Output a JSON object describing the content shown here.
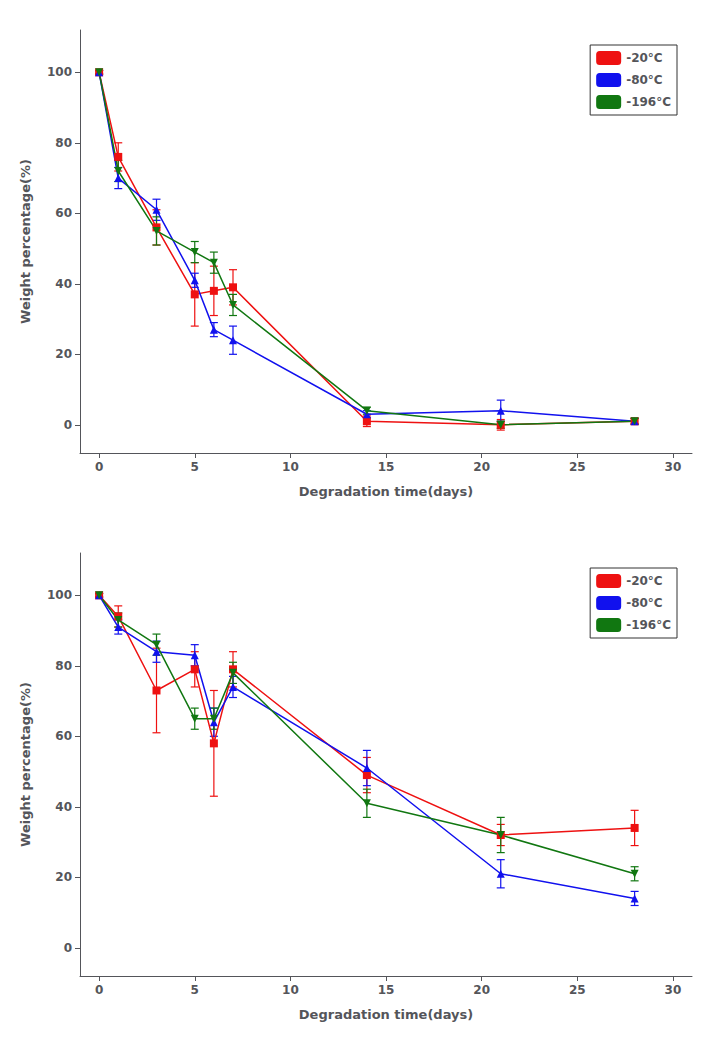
{
  "chart_data": [
    {
      "type": "line",
      "xlabel": "Degradation time(days)",
      "ylabel": "Weight percentage(%)",
      "xlim": [
        -1,
        31
      ],
      "ylim": [
        -8,
        112
      ],
      "xticks": [
        0,
        5,
        10,
        15,
        20,
        25,
        30
      ],
      "yticks": [
        0,
        20,
        40,
        60,
        80,
        100
      ],
      "grid": false,
      "legend": "upper right",
      "series": [
        {
          "name": "-20°C",
          "color": "#EE1111",
          "marker": "square",
          "x": [
            0,
            1,
            3,
            5,
            6,
            7,
            14,
            21,
            28
          ],
          "values": [
            100,
            76,
            56,
            37,
            38,
            39,
            1,
            0,
            1
          ],
          "yerr": [
            0.5,
            4,
            5,
            9,
            7,
            5,
            1.5,
            1.5,
            0.8
          ]
        },
        {
          "name": "-80°C",
          "color": "#1111EE",
          "marker": "triangle_up",
          "x": [
            0,
            1,
            3,
            5,
            6,
            7,
            14,
            21,
            28
          ],
          "values": [
            100,
            70,
            61,
            41,
            27,
            24,
            3,
            4,
            1
          ],
          "yerr": [
            0.5,
            3,
            3,
            2,
            2,
            4,
            1,
            3,
            0.8
          ]
        },
        {
          "name": "-196°C",
          "color": "#117711",
          "marker": "triangle_down",
          "x": [
            0,
            1,
            3,
            5,
            6,
            7,
            14,
            21,
            28
          ],
          "values": [
            100,
            72,
            55,
            49,
            46,
            34,
            4,
            0,
            1
          ],
          "yerr": [
            0.5,
            3,
            4,
            3,
            3,
            3,
            1,
            1,
            0.8
          ]
        }
      ]
    },
    {
      "type": "line",
      "xlabel": "Degradation time(days)",
      "ylabel": "Weight percentage(%)",
      "xlim": [
        -1,
        31
      ],
      "ylim": [
        -8,
        112
      ],
      "xticks": [
        0,
        5,
        10,
        15,
        20,
        25,
        30
      ],
      "yticks": [
        0,
        20,
        40,
        60,
        80,
        100
      ],
      "grid": false,
      "legend": "upper right",
      "series": [
        {
          "name": "-20°C",
          "color": "#EE1111",
          "marker": "square",
          "x": [
            0,
            1,
            3,
            5,
            6,
            7,
            14,
            21,
            28
          ],
          "values": [
            100,
            94,
            73,
            79,
            58,
            79,
            49,
            32,
            34
          ],
          "yerr": [
            0.5,
            3,
            12,
            5,
            15,
            5,
            5,
            3,
            5
          ]
        },
        {
          "name": "-80°C",
          "color": "#1111EE",
          "marker": "triangle_up",
          "x": [
            0,
            1,
            3,
            5,
            6,
            7,
            14,
            21,
            28
          ],
          "values": [
            100,
            91,
            84,
            83,
            64,
            74,
            51,
            21,
            14
          ],
          "yerr": [
            0.5,
            2,
            3,
            3,
            4,
            3,
            5,
            4,
            2
          ]
        },
        {
          "name": "-196°C",
          "color": "#117711",
          "marker": "triangle_down",
          "x": [
            0,
            1,
            3,
            5,
            6,
            7,
            14,
            21,
            28
          ],
          "values": [
            100,
            93,
            86,
            65,
            65,
            78,
            41,
            32,
            21
          ],
          "yerr": [
            0.5,
            2,
            3,
            3,
            3,
            3,
            4,
            5,
            2
          ]
        }
      ]
    }
  ]
}
